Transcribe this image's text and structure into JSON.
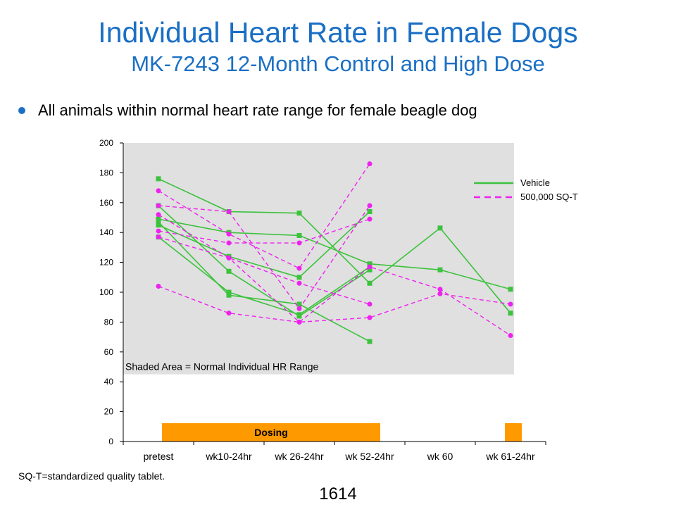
{
  "slide": {
    "title": "Individual Heart Rate in Female Dogs",
    "subtitle": "MK-7243 12-Month Control and High Dose",
    "bullet": "All animals within normal heart rate range for female beagle dog",
    "footnote": "SQ-T=standardized quality tablet.",
    "page_number": "1614"
  },
  "chart_data": {
    "type": "line",
    "categories": [
      "pretest",
      "wk10-24hr",
      "wk 26-24hr",
      "wk 52-24hr",
      "wk 60",
      "wk 61-24hr"
    ],
    "ylim": [
      0,
      200
    ],
    "yticks": [
      0,
      20,
      40,
      60,
      80,
      100,
      120,
      140,
      160,
      180,
      200
    ],
    "normal_range": [
      45,
      200
    ],
    "normal_range_label": "Shaded Area = Normal Individual  HR Range",
    "dosing": [
      {
        "from": "pretest",
        "to": "wk 52-24hr",
        "label": "Dosing"
      },
      {
        "from": "wk 61-24hr",
        "to": "wk 61-24hr",
        "label": ""
      }
    ],
    "legend_position": "top-right",
    "colors": {
      "vehicle": "#3cc23c",
      "treated": "#ee22ee",
      "range": "#e0e0e0",
      "dosing": "#ff9900"
    },
    "series": [
      {
        "name": "Vehicle",
        "group": "vehicle",
        "values": [
          176,
          154,
          153,
          106,
          143,
          86
        ]
      },
      {
        "name": "Vehicle",
        "group": "vehicle",
        "values": [
          149,
          140,
          138,
          119,
          115,
          102
        ]
      },
      {
        "name": "Vehicle",
        "group": "vehicle",
        "values": [
          145,
          124,
          110,
          154,
          null,
          null
        ]
      },
      {
        "name": "Vehicle",
        "group": "vehicle",
        "values": [
          158,
          114,
          84,
          115,
          null,
          null
        ]
      },
      {
        "name": "Vehicle",
        "group": "vehicle",
        "values": [
          147,
          98,
          92,
          67,
          null,
          null
        ]
      },
      {
        "name": "Vehicle",
        "group": "vehicle",
        "values": [
          137,
          100,
          85,
          117,
          null,
          null
        ]
      },
      {
        "name": "500,000 SQ-T",
        "group": "treated",
        "values": [
          168,
          139,
          116,
          186,
          null,
          null
        ]
      },
      {
        "name": "500,000 SQ-T",
        "group": "treated",
        "values": [
          158,
          154,
          89,
          158,
          null,
          null
        ]
      },
      {
        "name": "500,000 SQ-T",
        "group": "treated",
        "values": [
          152,
          123,
          106,
          92,
          null,
          null
        ]
      },
      {
        "name": "500,000 SQ-T",
        "group": "treated",
        "values": [
          141,
          133,
          133,
          149,
          null,
          null
        ]
      },
      {
        "name": "500,000 SQ-T",
        "group": "treated",
        "values": [
          137,
          123,
          80,
          117,
          102,
          71
        ]
      },
      {
        "name": "500,000 SQ-T",
        "group": "treated",
        "values": [
          104,
          86,
          80,
          83,
          99,
          92
        ]
      }
    ]
  }
}
